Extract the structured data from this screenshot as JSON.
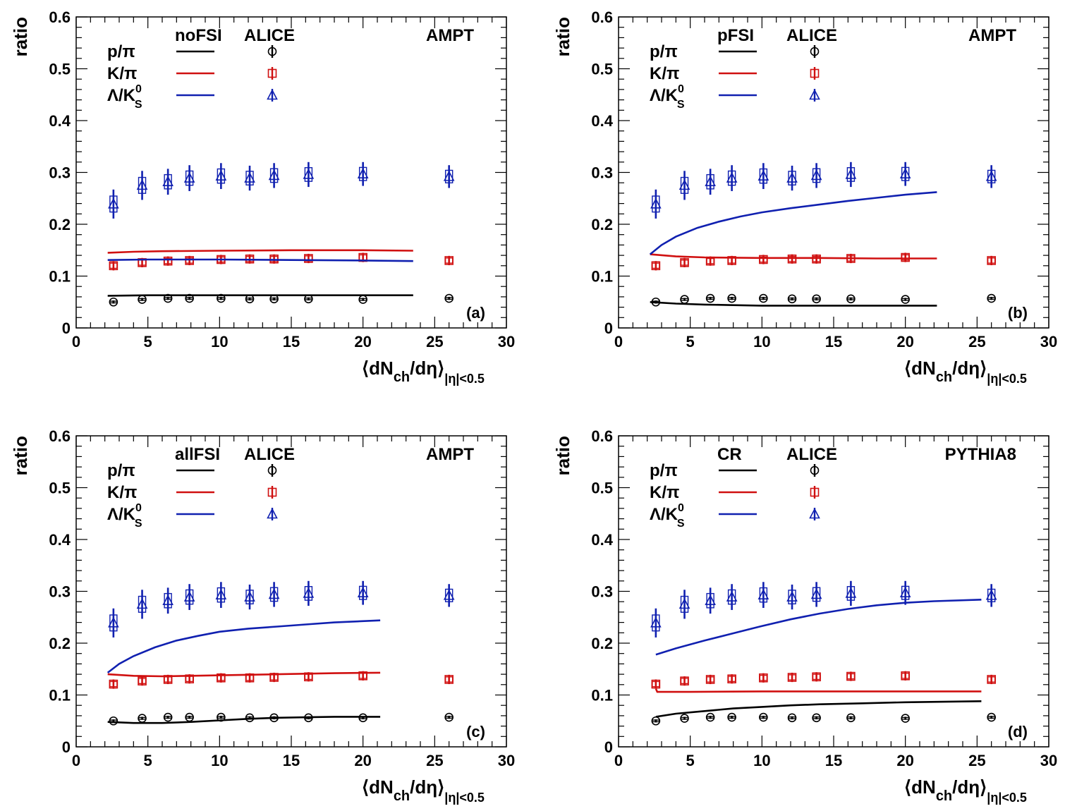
{
  "colors": {
    "p_pi": "#000000",
    "k_pi": "#d01010",
    "lambda_k": "#1020b0"
  },
  "chart_data": [
    {
      "type": "scatter",
      "panel_label": "(a)",
      "model_label": "noFSI",
      "data_label": "ALICE",
      "generator": "AMPT",
      "xlabel": "⟨dN_ch/dη⟩_|η|<0.5",
      "xlabel_main": "⟨dN",
      "xlabel_sub1": "ch",
      "xlabel_mid": "/dη⟩",
      "xlabel_sub2": "|η|<0.5",
      "ylabel": "ratio",
      "xlim": [
        0,
        30
      ],
      "ylim": [
        0,
        0.6
      ],
      "xticks": [
        "0",
        "5",
        "10",
        "15",
        "20",
        "25",
        "30"
      ],
      "yticks": [
        "0",
        "0.1",
        "0.2",
        "0.3",
        "0.4",
        "0.5",
        "0.6"
      ],
      "series": [
        {
          "name": "p/π",
          "legend_main": "p/π",
          "legend_sup": "",
          "legend_sub": "",
          "color_key": "p_pi",
          "marker": "circle",
          "alice_x": [
            2.6,
            4.6,
            6.4,
            7.9,
            10.1,
            12.1,
            13.8,
            16.2,
            20.0,
            26.0
          ],
          "alice_y": [
            0.05,
            0.055,
            0.057,
            0.057,
            0.057,
            0.056,
            0.056,
            0.056,
            0.055,
            0.057
          ],
          "alice_err": [
            0.003,
            0.003,
            0.003,
            0.003,
            0.003,
            0.003,
            0.003,
            0.003,
            0.003,
            0.003
          ],
          "model_x": [
            2.2,
            5,
            10,
            15,
            20,
            23.5
          ],
          "model_y": [
            0.062,
            0.063,
            0.063,
            0.063,
            0.063,
            0.063
          ]
        },
        {
          "name": "K/π",
          "legend_main": "K/π",
          "legend_sup": "",
          "legend_sub": "",
          "color_key": "k_pi",
          "marker": "square",
          "alice_x": [
            2.6,
            4.6,
            6.4,
            7.9,
            10.1,
            12.1,
            13.8,
            16.2,
            20.0,
            26.0
          ],
          "alice_y": [
            0.12,
            0.126,
            0.129,
            0.13,
            0.132,
            0.133,
            0.133,
            0.134,
            0.136,
            0.13
          ],
          "alice_err": [
            0.009,
            0.009,
            0.009,
            0.009,
            0.009,
            0.009,
            0.009,
            0.009,
            0.009,
            0.009
          ],
          "model_x": [
            2.2,
            4,
            6,
            10,
            15,
            20,
            23.5
          ],
          "model_y": [
            0.145,
            0.147,
            0.148,
            0.149,
            0.15,
            0.15,
            0.149
          ]
        },
        {
          "name": "Λ/K0S",
          "legend_main": "Λ/K",
          "legend_sup": "0",
          "legend_sub": "S",
          "color_key": "lambda_k",
          "marker": "triangle",
          "alice_x": [
            2.6,
            4.6,
            6.4,
            7.9,
            10.1,
            12.1,
            13.8,
            16.2,
            20.0,
            26.0
          ],
          "alice_y": [
            0.239,
            0.275,
            0.282,
            0.289,
            0.293,
            0.289,
            0.294,
            0.296,
            0.297,
            0.292
          ],
          "alice_err": [
            0.028,
            0.028,
            0.025,
            0.025,
            0.025,
            0.024,
            0.024,
            0.024,
            0.023,
            0.022
          ],
          "model_x": [
            2.2,
            5,
            10,
            15,
            20,
            23.5
          ],
          "model_y": [
            0.131,
            0.132,
            0.132,
            0.131,
            0.13,
            0.129
          ]
        }
      ]
    },
    {
      "type": "scatter",
      "panel_label": "(b)",
      "model_label": "pFSI",
      "data_label": "ALICE",
      "generator": "AMPT",
      "xlabel": "⟨dN_ch/dη⟩_|η|<0.5",
      "xlabel_main": "⟨dN",
      "xlabel_sub1": "ch",
      "xlabel_mid": "/dη⟩",
      "xlabel_sub2": "|η|<0.5",
      "ylabel": "ratio",
      "xlim": [
        0,
        30
      ],
      "ylim": [
        0,
        0.6
      ],
      "xticks": [
        "0",
        "5",
        "10",
        "15",
        "20",
        "25",
        "30"
      ],
      "yticks": [
        "0",
        "0.1",
        "0.2",
        "0.3",
        "0.4",
        "0.5",
        "0.6"
      ],
      "series": [
        {
          "name": "p/π",
          "legend_main": "p/π",
          "legend_sup": "",
          "legend_sub": "",
          "color_key": "p_pi",
          "marker": "circle",
          "alice_x": [
            2.6,
            4.6,
            6.4,
            7.9,
            10.1,
            12.1,
            13.8,
            16.2,
            20.0,
            26.0
          ],
          "alice_y": [
            0.05,
            0.055,
            0.057,
            0.057,
            0.057,
            0.056,
            0.056,
            0.056,
            0.055,
            0.057
          ],
          "alice_err": [
            0.003,
            0.003,
            0.003,
            0.003,
            0.003,
            0.003,
            0.003,
            0.003,
            0.003,
            0.003
          ],
          "model_x": [
            2.2,
            4,
            6,
            8,
            10,
            14,
            18,
            22.2
          ],
          "model_y": [
            0.05,
            0.047,
            0.045,
            0.044,
            0.043,
            0.043,
            0.043,
            0.043
          ]
        },
        {
          "name": "K/π",
          "legend_main": "K/π",
          "legend_sup": "",
          "legend_sub": "",
          "color_key": "k_pi",
          "marker": "square",
          "alice_x": [
            2.6,
            4.6,
            6.4,
            7.9,
            10.1,
            12.1,
            13.8,
            16.2,
            20.0,
            26.0
          ],
          "alice_y": [
            0.12,
            0.126,
            0.129,
            0.13,
            0.132,
            0.133,
            0.133,
            0.134,
            0.136,
            0.13
          ],
          "alice_err": [
            0.009,
            0.009,
            0.009,
            0.009,
            0.009,
            0.009,
            0.009,
            0.009,
            0.009,
            0.009
          ],
          "model_x": [
            2.2,
            4,
            6,
            10,
            14,
            18,
            22.2
          ],
          "model_y": [
            0.142,
            0.138,
            0.136,
            0.135,
            0.135,
            0.134,
            0.134
          ]
        },
        {
          "name": "Λ/K0S",
          "legend_main": "Λ/K",
          "legend_sup": "0",
          "legend_sub": "S",
          "color_key": "lambda_k",
          "marker": "triangle",
          "alice_x": [
            2.6,
            4.6,
            6.4,
            7.9,
            10.1,
            12.1,
            13.8,
            16.2,
            20.0,
            26.0
          ],
          "alice_y": [
            0.239,
            0.275,
            0.282,
            0.289,
            0.293,
            0.289,
            0.294,
            0.296,
            0.297,
            0.292
          ],
          "alice_err": [
            0.028,
            0.028,
            0.025,
            0.025,
            0.025,
            0.024,
            0.024,
            0.024,
            0.023,
            0.022
          ],
          "model_x": [
            2.2,
            3,
            4,
            5.5,
            7,
            8.5,
            10,
            12,
            14,
            16,
            18,
            20,
            22.2
          ],
          "model_y": [
            0.142,
            0.16,
            0.176,
            0.193,
            0.205,
            0.215,
            0.223,
            0.231,
            0.238,
            0.245,
            0.251,
            0.257,
            0.262
          ]
        }
      ]
    },
    {
      "type": "scatter",
      "panel_label": "(c)",
      "model_label": "allFSI",
      "data_label": "ALICE",
      "generator": "AMPT",
      "xlabel": "⟨dN_ch/dη⟩_|η|<0.5",
      "xlabel_main": "⟨dN",
      "xlabel_sub1": "ch",
      "xlabel_mid": "/dη⟩",
      "xlabel_sub2": "|η|<0.5",
      "ylabel": "ratio",
      "xlim": [
        0,
        30
      ],
      "ylim": [
        0,
        0.6
      ],
      "xticks": [
        "0",
        "5",
        "10",
        "15",
        "20",
        "25",
        "30"
      ],
      "yticks": [
        "0",
        "0.1",
        "0.2",
        "0.3",
        "0.4",
        "0.5",
        "0.6"
      ],
      "series": [
        {
          "name": "p/π",
          "legend_main": "p/π",
          "legend_sup": "",
          "legend_sub": "",
          "color_key": "p_pi",
          "marker": "circle",
          "alice_x": [
            2.6,
            4.6,
            6.4,
            7.9,
            10.1,
            12.1,
            13.8,
            16.2,
            20.0,
            26.0
          ],
          "alice_y": [
            0.05,
            0.055,
            0.057,
            0.057,
            0.057,
            0.056,
            0.056,
            0.056,
            0.056,
            0.057
          ],
          "alice_err": [
            0.003,
            0.003,
            0.003,
            0.003,
            0.003,
            0.003,
            0.003,
            0.003,
            0.003,
            0.003
          ],
          "model_x": [
            2.2,
            4,
            6,
            8,
            10,
            12,
            14,
            16,
            18,
            21.2
          ],
          "model_y": [
            0.048,
            0.046,
            0.046,
            0.048,
            0.051,
            0.054,
            0.056,
            0.057,
            0.058,
            0.058
          ]
        },
        {
          "name": "K/π",
          "legend_main": "K/π",
          "legend_sup": "",
          "legend_sub": "",
          "color_key": "k_pi",
          "marker": "square",
          "alice_x": [
            2.6,
            4.6,
            6.4,
            7.9,
            10.1,
            12.1,
            13.8,
            16.2,
            20.0,
            26.0
          ],
          "alice_y": [
            0.121,
            0.127,
            0.13,
            0.131,
            0.133,
            0.133,
            0.134,
            0.135,
            0.137,
            0.13
          ],
          "alice_err": [
            0.009,
            0.009,
            0.009,
            0.009,
            0.009,
            0.009,
            0.009,
            0.009,
            0.009,
            0.009
          ],
          "model_x": [
            2.2,
            4,
            6,
            8,
            10,
            14,
            18,
            21.2
          ],
          "model_y": [
            0.14,
            0.137,
            0.136,
            0.137,
            0.138,
            0.14,
            0.142,
            0.143
          ]
        },
        {
          "name": "Λ/K0S",
          "legend_main": "Λ/K",
          "legend_sup": "0",
          "legend_sub": "S",
          "color_key": "lambda_k",
          "marker": "triangle",
          "alice_x": [
            2.6,
            4.6,
            6.4,
            7.9,
            10.1,
            12.1,
            13.8,
            16.2,
            20.0,
            26.0
          ],
          "alice_y": [
            0.239,
            0.275,
            0.282,
            0.289,
            0.293,
            0.289,
            0.294,
            0.296,
            0.297,
            0.292
          ],
          "alice_err": [
            0.028,
            0.028,
            0.025,
            0.025,
            0.025,
            0.024,
            0.024,
            0.024,
            0.023,
            0.022
          ],
          "model_x": [
            2.2,
            3,
            4,
            5.5,
            7,
            8.5,
            10,
            12,
            14,
            16,
            18,
            21.2
          ],
          "model_y": [
            0.143,
            0.16,
            0.175,
            0.192,
            0.205,
            0.214,
            0.222,
            0.228,
            0.232,
            0.236,
            0.24,
            0.244
          ]
        }
      ]
    },
    {
      "type": "scatter",
      "panel_label": "(d)",
      "model_label": "CR",
      "data_label": "ALICE",
      "generator": "PYTHIA8",
      "xlabel": "⟨dN_ch/dη⟩_|η|<0.5",
      "xlabel_main": "⟨dN",
      "xlabel_sub1": "ch",
      "xlabel_mid": "/dη⟩",
      "xlabel_sub2": "|η|<0.5",
      "ylabel": "ratio",
      "xlim": [
        0,
        30
      ],
      "ylim": [
        0,
        0.6
      ],
      "xticks": [
        "0",
        "5",
        "10",
        "15",
        "20",
        "25",
        "30"
      ],
      "yticks": [
        "0",
        "0.1",
        "0.2",
        "0.3",
        "0.4",
        "0.5",
        "0.6"
      ],
      "series": [
        {
          "name": "p/π",
          "legend_main": "p/π",
          "legend_sup": "",
          "legend_sub": "",
          "color_key": "p_pi",
          "marker": "circle",
          "alice_x": [
            2.6,
            4.6,
            6.4,
            7.9,
            10.1,
            12.1,
            13.8,
            16.2,
            20.0,
            26.0
          ],
          "alice_y": [
            0.05,
            0.055,
            0.057,
            0.057,
            0.057,
            0.056,
            0.056,
            0.056,
            0.055,
            0.057
          ],
          "alice_err": [
            0.003,
            0.003,
            0.003,
            0.003,
            0.003,
            0.003,
            0.003,
            0.003,
            0.003,
            0.003
          ],
          "model_x": [
            2.6,
            4,
            6,
            8,
            10,
            12,
            14,
            17,
            20,
            25.3
          ],
          "model_y": [
            0.058,
            0.064,
            0.069,
            0.074,
            0.077,
            0.08,
            0.082,
            0.084,
            0.086,
            0.088
          ]
        },
        {
          "name": "K/π",
          "legend_main": "K/π",
          "legend_sup": "",
          "legend_sub": "",
          "color_key": "k_pi",
          "marker": "square",
          "alice_x": [
            2.6,
            4.6,
            6.4,
            7.9,
            10.1,
            12.1,
            13.8,
            16.2,
            20.0,
            26.0
          ],
          "alice_y": [
            0.121,
            0.127,
            0.13,
            0.131,
            0.133,
            0.134,
            0.135,
            0.136,
            0.137,
            0.13
          ],
          "alice_err": [
            0.009,
            0.009,
            0.009,
            0.009,
            0.009,
            0.009,
            0.009,
            0.009,
            0.009,
            0.009
          ],
          "model_x": [
            2.6,
            2.7,
            5,
            10,
            15,
            20,
            25.3
          ],
          "model_y": [
            0.112,
            0.106,
            0.106,
            0.107,
            0.107,
            0.107,
            0.107
          ]
        },
        {
          "name": "Λ/K0S",
          "legend_main": "Λ/K",
          "legend_sup": "0",
          "legend_sub": "S",
          "color_key": "lambda_k",
          "marker": "triangle",
          "alice_x": [
            2.6,
            4.6,
            6.4,
            7.9,
            10.1,
            12.1,
            13.8,
            16.2,
            20.0,
            26.0
          ],
          "alice_y": [
            0.239,
            0.275,
            0.282,
            0.289,
            0.293,
            0.289,
            0.294,
            0.296,
            0.297,
            0.292
          ],
          "alice_err": [
            0.028,
            0.028,
            0.025,
            0.025,
            0.025,
            0.024,
            0.024,
            0.024,
            0.023,
            0.022
          ],
          "model_x": [
            2.6,
            4,
            6,
            8,
            10,
            12,
            14,
            16,
            18,
            20,
            22,
            25.3
          ],
          "model_y": [
            0.178,
            0.19,
            0.205,
            0.219,
            0.233,
            0.246,
            0.257,
            0.266,
            0.273,
            0.278,
            0.281,
            0.284
          ]
        }
      ]
    }
  ]
}
